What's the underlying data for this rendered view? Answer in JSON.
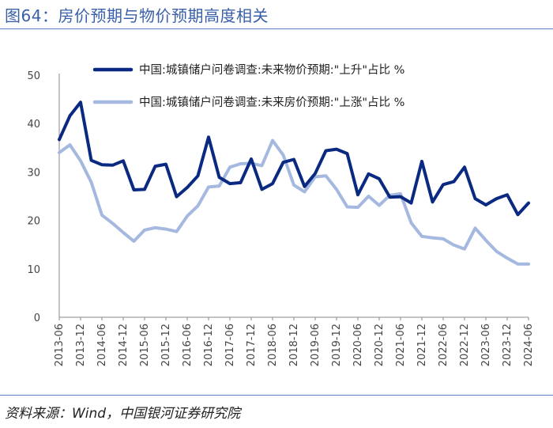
{
  "figure": {
    "title": "图64：房价预期与物价预期高度相关",
    "source": "资料来源：Wind，中国银河证券研究院"
  },
  "colors": {
    "accent": "#3a5fa8",
    "series_dark": "#0a2a82",
    "series_light": "#a5b8e0"
  },
  "chart_data": {
    "type": "line",
    "title": "房价预期与物价预期高度相关",
    "xlabel": "",
    "ylabel": "",
    "ylim": [
      0,
      50
    ],
    "yticks": [
      0,
      10,
      20,
      30,
      40,
      50
    ],
    "legend_position": "top",
    "x": [
      "2013-06",
      "2013-09",
      "2013-12",
      "2014-03",
      "2014-06",
      "2014-09",
      "2014-12",
      "2015-03",
      "2015-06",
      "2015-09",
      "2015-12",
      "2016-03",
      "2016-06",
      "2016-09",
      "2016-12",
      "2017-03",
      "2017-06",
      "2017-09",
      "2017-12",
      "2018-03",
      "2018-06",
      "2018-09",
      "2018-12",
      "2019-03",
      "2019-06",
      "2019-09",
      "2019-12",
      "2020-03",
      "2020-06",
      "2020-09",
      "2020-12",
      "2021-03",
      "2021-06",
      "2021-09",
      "2021-12",
      "2022-03",
      "2022-06",
      "2022-09",
      "2022-12",
      "2023-03",
      "2023-06",
      "2023-09",
      "2023-12",
      "2024-03",
      "2024-06"
    ],
    "xtick_labels": [
      "2013-06",
      "2013-12",
      "2014-06",
      "2014-12",
      "2015-06",
      "2015-12",
      "2016-06",
      "2016-12",
      "2017-06",
      "2017-12",
      "2018-06",
      "2018-12",
      "2019-06",
      "2019-12",
      "2020-06",
      "2020-12",
      "2021-06",
      "2021-12",
      "2022-06",
      "2022-12",
      "2023-06",
      "2023-12",
      "2024-06"
    ],
    "series": [
      {
        "name": "中国:城镇储户问卷调查:未来物价预期:\"上升\"占比 %",
        "color": "#0a2a82",
        "values": [
          36.7,
          41.6,
          44.4,
          32.4,
          31.5,
          31.4,
          32.3,
          26.3,
          26.4,
          31.2,
          31.6,
          24.9,
          26.8,
          29.2,
          37.2,
          28.9,
          27.6,
          27.8,
          32.7,
          26.4,
          27.6,
          32.0,
          32.6,
          27.0,
          29.7,
          34.4,
          34.7,
          33.8,
          25.3,
          29.6,
          28.6,
          24.8,
          24.9,
          23.6,
          32.2,
          23.8,
          27.4,
          28.0,
          31.0,
          24.5,
          23.2,
          24.5,
          25.3,
          21.2,
          23.6
        ]
      },
      {
        "name": "中国:城镇储户问卷调查:未来房价预期:\"上涨\"占比 %",
        "color": "#a5b8e0",
        "values": [
          34.0,
          35.6,
          32.3,
          27.9,
          21.1,
          19.4,
          17.5,
          15.7,
          18.0,
          18.5,
          18.2,
          17.7,
          20.9,
          23.0,
          26.9,
          27.1,
          31.0,
          31.7,
          31.8,
          31.3,
          36.5,
          33.5,
          27.3,
          25.9,
          29.0,
          29.2,
          26.4,
          22.8,
          22.7,
          25.0,
          23.1,
          25.2,
          25.5,
          19.5,
          16.7,
          16.4,
          16.2,
          14.9,
          14.1,
          18.4,
          15.9,
          13.6,
          12.2,
          11.0,
          11.0
        ]
      }
    ]
  }
}
